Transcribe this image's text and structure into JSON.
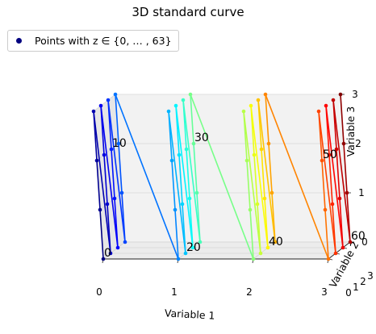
{
  "chart_data": {
    "type": "line",
    "title": "3D standard curve",
    "xlabel": "Variable 1",
    "ylabel": "Variable 2",
    "zlabel": "Variable 3",
    "xlim": [
      0,
      3
    ],
    "ylim": [
      0,
      3
    ],
    "zlim": [
      0,
      3
    ],
    "xticks": [
      "0",
      "1",
      "2",
      "3"
    ],
    "yticks": [
      "0",
      "1",
      "2",
      "3"
    ],
    "zticks": [
      "0",
      "1",
      "2",
      "3"
    ],
    "grid": true,
    "legend": {
      "placement": "top-left",
      "entries": [
        "Points with z ∈ {0, … , 63}"
      ]
    },
    "colormap": "jet",
    "point_index_range": [
      0,
      63
    ],
    "annotations": [
      {
        "text": "0",
        "index": 0
      },
      {
        "text": "10",
        "index": 10
      },
      {
        "text": "20",
        "index": 20
      },
      {
        "text": "30",
        "index": 30
      },
      {
        "text": "40",
        "index": 40
      },
      {
        "text": "50",
        "index": 50
      },
      {
        "text": "60",
        "index": 60
      }
    ]
  }
}
